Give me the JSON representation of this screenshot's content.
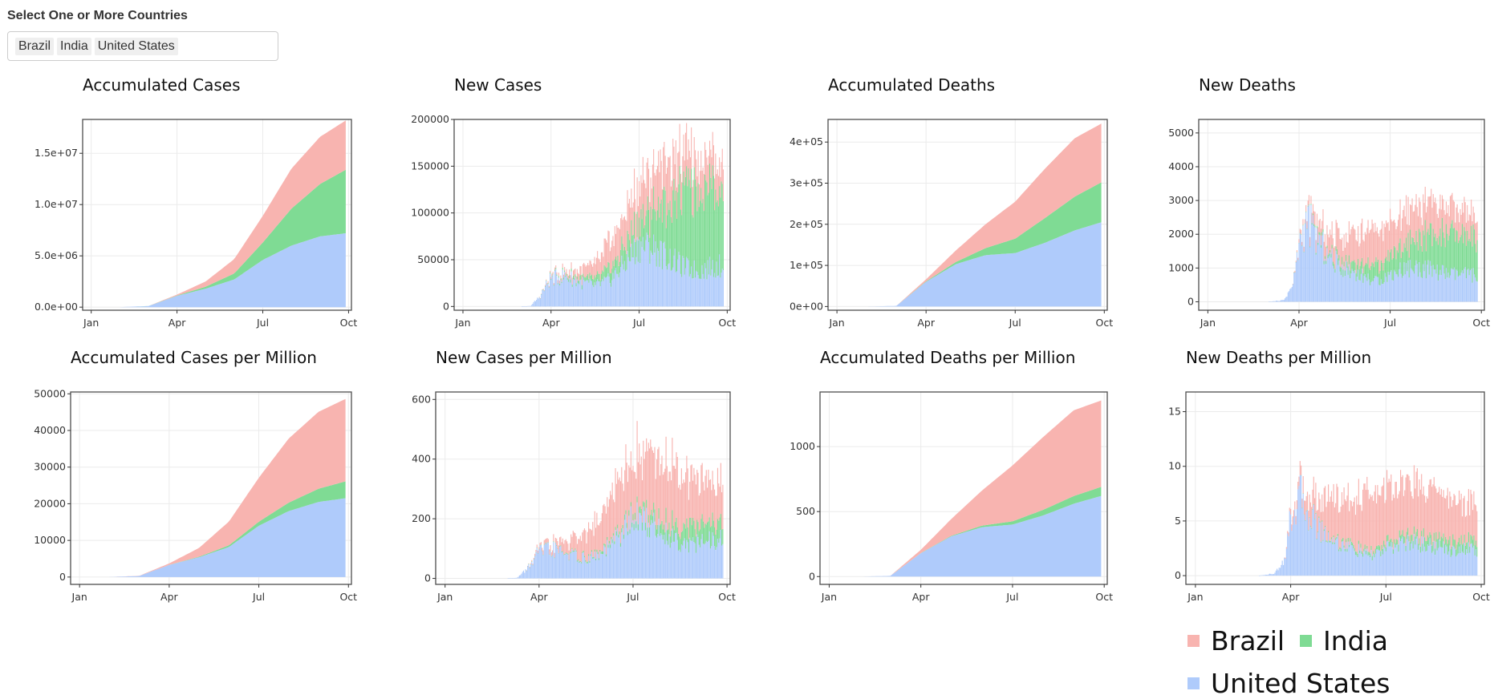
{
  "filter": {
    "label": "Select One or More Countries",
    "selected": [
      "Brazil",
      "India",
      "United States"
    ]
  },
  "colors": {
    "Brazil": "#F8B4B0",
    "India": "#7FDB94",
    "United States": "#AFCBFB"
  },
  "legend": {
    "items": [
      "Brazil",
      "India",
      "United States"
    ]
  },
  "chart_data": [
    {
      "id": "acc_cases",
      "type": "area",
      "stacked": true,
      "title": "Accumulated Cases",
      "x_ticks": [
        "Jan",
        "Apr",
        "Jul",
        "Oct"
      ],
      "ylim": [
        -300000,
        18300000
      ],
      "y_ticks": [
        0,
        5000000,
        10000000,
        15000000
      ],
      "y_tick_labels": [
        "0.0e+00",
        "5.0e+06",
        "1.0e+07",
        "1.5e+07"
      ],
      "months": [
        1,
        2,
        3,
        4,
        5,
        6,
        7,
        8,
        9,
        9.9
      ],
      "series": [
        {
          "name": "United States",
          "values": [
            0,
            0,
            100000,
            1100000,
            1800000,
            2700000,
            4600000,
            6000000,
            6900000,
            7200000
          ]
        },
        {
          "name": "India",
          "values": [
            0,
            0,
            2000,
            35000,
            190000,
            580000,
            1700000,
            3600000,
            5100000,
            6200000
          ]
        },
        {
          "name": "Brazil",
          "values": [
            0,
            0,
            5000,
            90000,
            510000,
            1400000,
            2600000,
            3900000,
            4600000,
            4800000
          ]
        }
      ]
    },
    {
      "id": "new_cases",
      "type": "bar",
      "stacked": true,
      "title": "New Cases",
      "x_ticks": [
        "Jan",
        "Apr",
        "Jul",
        "Oct"
      ],
      "ylim": [
        -4000,
        200000
      ],
      "y_ticks": [
        0,
        50000,
        100000,
        150000,
        200000
      ],
      "y_tick_labels": [
        "0",
        "50000",
        "100000",
        "150000",
        "200000"
      ],
      "months": [
        1,
        2,
        3,
        3.3,
        3.6,
        4,
        4.5,
        5,
        5.5,
        6,
        6.5,
        7,
        7.5,
        8,
        8.5,
        9,
        9.5,
        9.9
      ],
      "series": [
        {
          "name": "United States",
          "values": [
            0,
            0,
            0,
            500,
            10000,
            30000,
            32000,
            26000,
            22000,
            28000,
            45000,
            66000,
            62000,
            52000,
            42000,
            38000,
            42000,
            44000
          ]
        },
        {
          "name": "India",
          "values": [
            0,
            0,
            0,
            0,
            0,
            1000,
            2000,
            4000,
            7000,
            12000,
            18000,
            25000,
            40000,
            60000,
            80000,
            90000,
            85000,
            85000
          ]
        },
        {
          "name": "Brazil",
          "values": [
            0,
            0,
            0,
            0,
            0,
            2000,
            4000,
            10000,
            17000,
            27000,
            35000,
            40000,
            45000,
            45000,
            38000,
            32000,
            30000,
            29000
          ]
        }
      ]
    },
    {
      "id": "acc_deaths",
      "type": "area",
      "stacked": true,
      "title": "Accumulated Deaths",
      "x_ticks": [
        "Jan",
        "Apr",
        "Jul",
        "Oct"
      ],
      "ylim": [
        -9000,
        455000
      ],
      "y_ticks": [
        0,
        100000,
        200000,
        300000,
        400000
      ],
      "y_tick_labels": [
        "0e+00",
        "1e+05",
        "2e+05",
        "3e+05",
        "4e+05"
      ],
      "months": [
        1,
        2,
        3,
        4,
        5,
        6,
        7,
        8,
        9,
        9.9
      ],
      "series": [
        {
          "name": "United States",
          "values": [
            0,
            0,
            1500,
            60000,
            103000,
            125000,
            130000,
            155000,
            185000,
            205000
          ]
        },
        {
          "name": "India",
          "values": [
            0,
            0,
            0,
            1200,
            5200,
            17000,
            35000,
            60000,
            82000,
            97000
          ]
        },
        {
          "name": "Brazil",
          "values": [
            0,
            0,
            0,
            5000,
            28000,
            58000,
            90000,
            120000,
            142000,
            143000
          ]
        }
      ]
    },
    {
      "id": "new_deaths",
      "type": "bar",
      "stacked": true,
      "title": "New Deaths",
      "x_ticks": [
        "Jan",
        "Apr",
        "Jul",
        "Oct"
      ],
      "ylim": [
        -250,
        5400
      ],
      "y_ticks": [
        0,
        1000,
        2000,
        3000,
        4000,
        5000
      ],
      "y_tick_labels": [
        "0",
        "1000",
        "2000",
        "3000",
        "4000",
        "5000"
      ],
      "months": [
        1,
        2,
        3,
        3.5,
        3.8,
        4,
        4.3,
        4.5,
        5,
        5.5,
        6,
        6.5,
        7,
        7.5,
        8,
        8.5,
        9,
        9.5,
        9.9
      ],
      "series": [
        {
          "name": "United States",
          "values": [
            0,
            0,
            0,
            50,
            500,
            1700,
            2400,
            2000,
            1300,
            1000,
            800,
            600,
            800,
            1000,
            1000,
            900,
            800,
            800,
            800
          ]
        },
        {
          "name": "India",
          "values": [
            0,
            0,
            0,
            0,
            0,
            10,
            30,
            50,
            100,
            200,
            350,
            450,
            550,
            700,
            950,
            1050,
            1150,
            1100,
            1100
          ]
        },
        {
          "name": "Brazil",
          "values": [
            0,
            0,
            0,
            0,
            0,
            100,
            200,
            300,
            600,
            800,
            900,
            1000,
            1000,
            1000,
            900,
            900,
            800,
            700,
            700
          ]
        }
      ]
    },
    {
      "id": "acc_cases_pm",
      "type": "area",
      "stacked": true,
      "title": "Accumulated Cases per Million",
      "x_ticks": [
        "Jan",
        "Apr",
        "Jul",
        "Oct"
      ],
      "ylim": [
        -2000,
        50500
      ],
      "y_ticks": [
        0,
        10000,
        20000,
        30000,
        40000,
        50000
      ],
      "y_tick_labels": [
        "0",
        "10000",
        "20000",
        "30000",
        "40000",
        "50000"
      ],
      "months": [
        1,
        2,
        3,
        4,
        5,
        6,
        7,
        8,
        9,
        9.9
      ],
      "series": [
        {
          "name": "United States",
          "values": [
            0,
            0,
            300,
            3300,
            5400,
            8200,
            14000,
            18000,
            20500,
            21500
          ]
        },
        {
          "name": "India",
          "values": [
            0,
            0,
            0,
            20,
            150,
            450,
            1100,
            2300,
            3600,
            4600
          ]
        },
        {
          "name": "Brazil",
          "values": [
            0,
            0,
            50,
            400,
            2400,
            6500,
            12000,
            17500,
            21000,
            22500
          ]
        }
      ]
    },
    {
      "id": "new_cases_pm",
      "type": "bar",
      "stacked": true,
      "title": "New Cases per Million",
      "x_ticks": [
        "Jan",
        "Apr",
        "Jul",
        "Oct"
      ],
      "ylim": [
        -20,
        625
      ],
      "y_ticks": [
        0,
        200,
        400,
        600
      ],
      "y_tick_labels": [
        "0",
        "200",
        "400",
        "600"
      ],
      "months": [
        1,
        2,
        3,
        3.3,
        3.6,
        4,
        4.5,
        5,
        5.5,
        6,
        6.5,
        7,
        7.5,
        8,
        8.5,
        9,
        9.5,
        9.9
      ],
      "series": [
        {
          "name": "United States",
          "values": [
            0,
            0,
            0,
            2,
            30,
            90,
            95,
            80,
            65,
            80,
            135,
            200,
            190,
            150,
            125,
            115,
            125,
            130
          ]
        },
        {
          "name": "India",
          "values": [
            0,
            0,
            0,
            0,
            0,
            1,
            2,
            3,
            5,
            8,
            12,
            18,
            28,
            42,
            55,
            62,
            60,
            60
          ]
        },
        {
          "name": "Brazil",
          "values": [
            0,
            0,
            0,
            0,
            0,
            10,
            20,
            45,
            80,
            120,
            160,
            190,
            210,
            210,
            180,
            150,
            140,
            135
          ]
        }
      ]
    },
    {
      "id": "acc_deaths_pm",
      "type": "area",
      "stacked": true,
      "title": "Accumulated Deaths per Million",
      "x_ticks": [
        "Jan",
        "Apr",
        "Jul",
        "Oct"
      ],
      "ylim": [
        -60,
        1420
      ],
      "y_ticks": [
        0,
        500,
        1000
      ],
      "y_tick_labels": [
        "0",
        "500",
        "1000"
      ],
      "months": [
        1,
        2,
        3,
        4,
        5,
        6,
        7,
        8,
        9,
        9.9
      ],
      "series": [
        {
          "name": "United States",
          "values": [
            0,
            0,
            5,
            180,
            310,
            380,
            400,
            470,
            560,
            620
          ]
        },
        {
          "name": "India",
          "values": [
            0,
            0,
            0,
            1,
            4,
            12,
            25,
            43,
            59,
            70
          ]
        },
        {
          "name": "Brazil",
          "values": [
            0,
            0,
            0,
            25,
            130,
            270,
            430,
            560,
            660,
            665
          ]
        }
      ]
    },
    {
      "id": "new_deaths_pm",
      "type": "bar",
      "stacked": true,
      "title": "New Deaths per Million",
      "x_ticks": [
        "Jan",
        "Apr",
        "Jul",
        "Oct"
      ],
      "ylim": [
        -0.8,
        16.8
      ],
      "y_ticks": [
        0,
        5,
        10,
        15
      ],
      "y_tick_labels": [
        "0",
        "5",
        "10",
        "15"
      ],
      "months": [
        1,
        2,
        3,
        3.5,
        3.8,
        4,
        4.3,
        4.5,
        5,
        5.5,
        6,
        6.5,
        7,
        7.5,
        8,
        8.5,
        9,
        9.5,
        9.9
      ],
      "series": [
        {
          "name": "United States",
          "values": [
            0,
            0,
            0,
            0.2,
            1.5,
            5.2,
            7.3,
            6,
            4,
            3,
            2.4,
            1.8,
            2.4,
            3,
            3,
            2.7,
            2.4,
            2.4,
            2.4
          ]
        },
        {
          "name": "India",
          "values": [
            0,
            0,
            0,
            0,
            0,
            0,
            0,
            0.05,
            0.1,
            0.2,
            0.3,
            0.35,
            0.45,
            0.55,
            0.7,
            0.8,
            0.85,
            0.8,
            0.8
          ]
        },
        {
          "name": "Brazil",
          "values": [
            0,
            0,
            0,
            0,
            0,
            0.5,
            1,
            1.5,
            3,
            4,
            4.5,
            5,
            5,
            5,
            4.5,
            4.5,
            4,
            3.5,
            3.5
          ]
        }
      ]
    }
  ]
}
